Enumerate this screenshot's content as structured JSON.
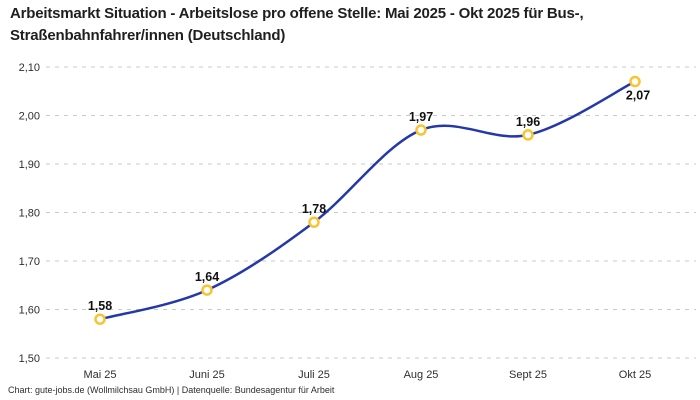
{
  "header": {
    "title": "Arbeitsmarkt Situation - Arbeitslose pro offene Stelle: Mai 2025 - Okt 2025 für Bus-, Straßenbahnfahrer/innen (Deutschland)",
    "title_lines": [
      "Arbeitsmarkt Situation - Arbeitslose pro offene Stelle: Mai 2025 - Okt 2025 für Bus-,",
      "Straßenbahnfahrer/innen (Deutschland)"
    ]
  },
  "footer": {
    "text": "Chart: gute-jobs.de (Wollmilchsau GmbH) | Datenquelle: Bundesagentur für Arbeit"
  },
  "chart_data": {
    "type": "line",
    "title": "Arbeitsmarkt Situation - Arbeitslose pro offene Stelle: Mai 2025 - Okt 2025 für Bus-, Straßenbahnfahrer/innen (Deutschland)",
    "categories": [
      "Mai 25",
      "Juni 25",
      "Juli 25",
      "Aug 25",
      "Sept 25",
      "Okt 25"
    ],
    "values": [
      1.58,
      1.64,
      1.78,
      1.97,
      1.96,
      2.07
    ],
    "value_labels": [
      "1,58",
      "1,64",
      "1,78",
      "1,97",
      "1,96",
      "2,07"
    ],
    "xlabel": "",
    "ylabel": "",
    "ylim": [
      1.5,
      2.1
    ],
    "ytick_step": 0.1,
    "ytick_labels": [
      "1,50",
      "1,60",
      "1,70",
      "1,80",
      "1,90",
      "2,00",
      "2,10"
    ],
    "decimal_separator": ",",
    "grid": "horizontal-dashed",
    "legend": "none",
    "smooth": true,
    "label_positions": [
      "above",
      "above",
      "above",
      "above",
      "above",
      "below-right"
    ],
    "colors": {
      "line": "#2438a8",
      "marker_stroke": "#f8c431",
      "marker_fill": "#ffffff",
      "point_label": "#111111",
      "grid": "#c9c9c9",
      "axis_text": "#2e2e2e",
      "title_text": "#1f1f1f",
      "background": "#ffffff"
    }
  }
}
